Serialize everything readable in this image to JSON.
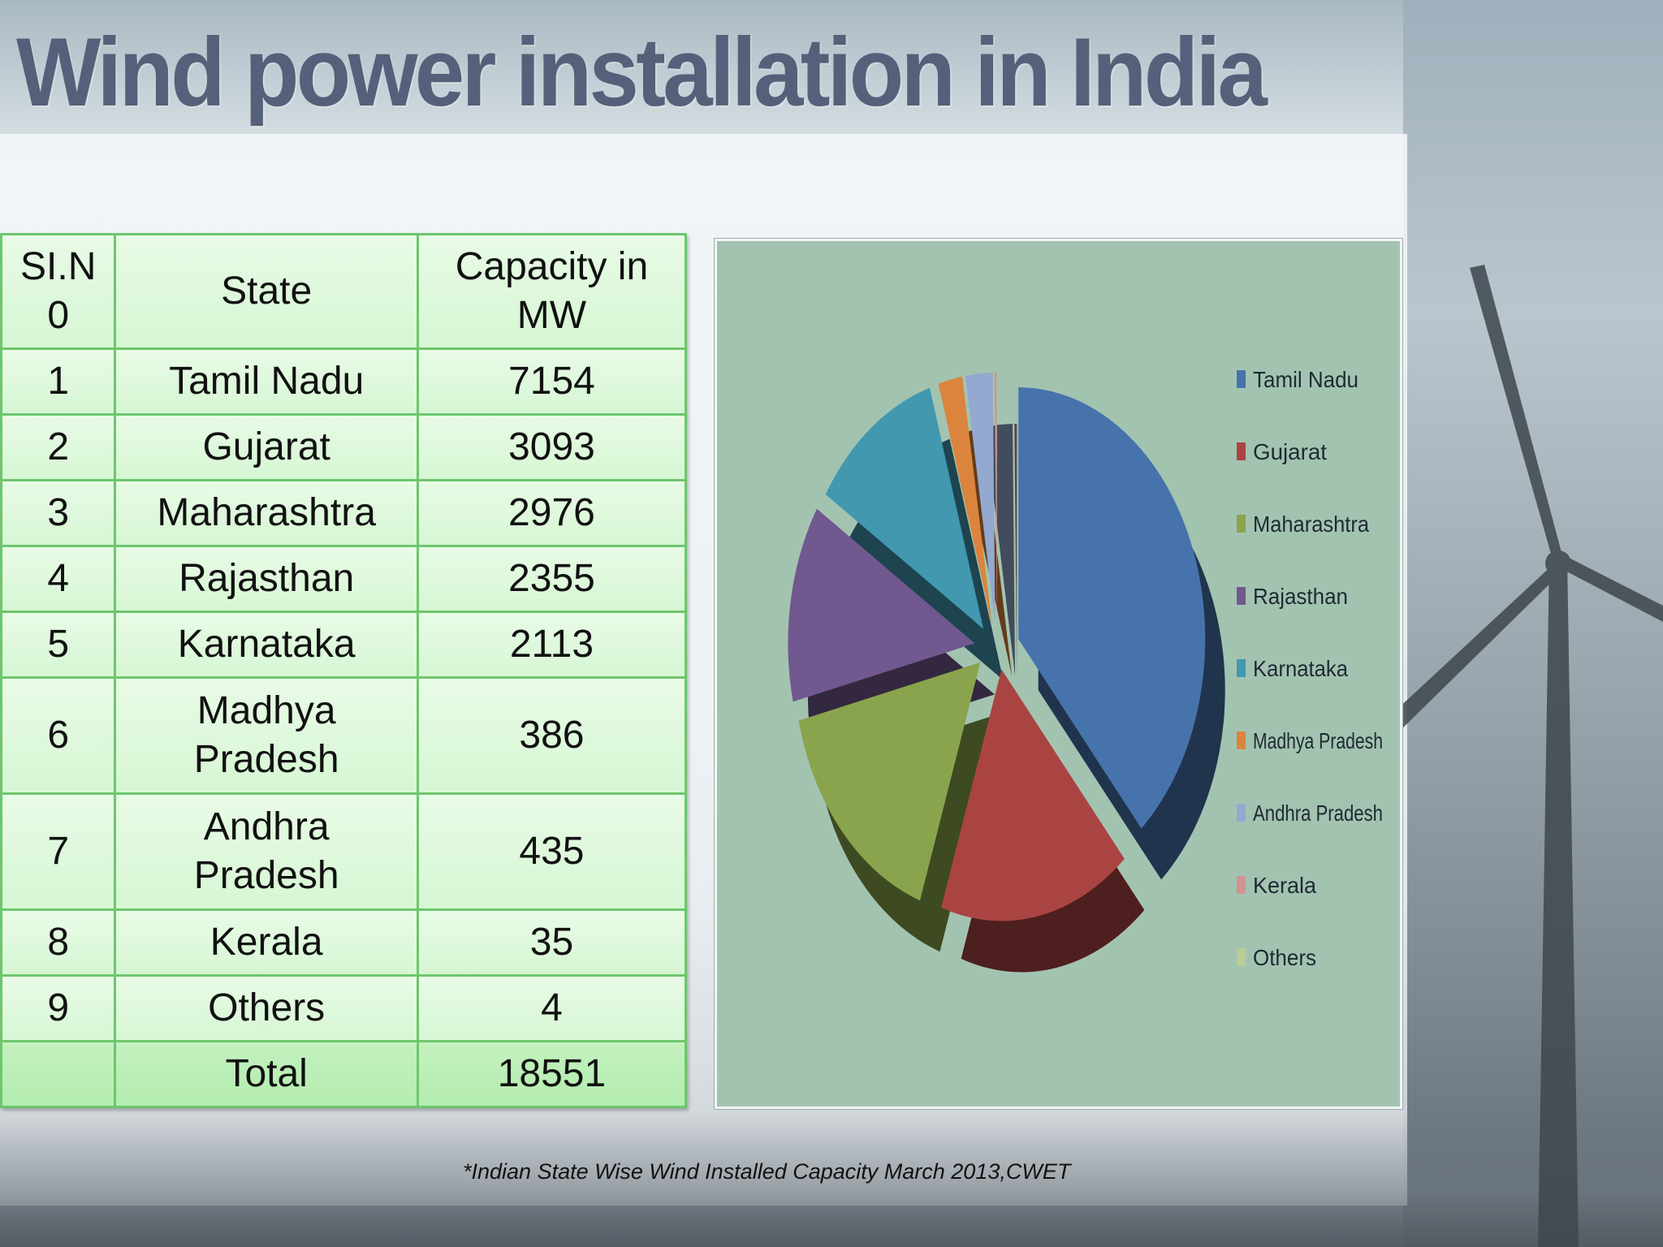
{
  "title": "Wind power installation in India",
  "table": {
    "headers": [
      "SI.N 0",
      "State",
      "Capacity in MW"
    ],
    "rows": [
      {
        "sno": "1",
        "state": "Tamil Nadu",
        "capacity": "7154"
      },
      {
        "sno": "2",
        "state": "Gujarat",
        "capacity": "3093"
      },
      {
        "sno": "3",
        "state": "Maharashtra",
        "capacity": "2976"
      },
      {
        "sno": "4",
        "state": "Rajasthan",
        "capacity": "2355"
      },
      {
        "sno": "5",
        "state": "Karnataka",
        "capacity": "2113"
      },
      {
        "sno": "6",
        "state": "Madhya Pradesh",
        "capacity": "386"
      },
      {
        "sno": "7",
        "state": "Andhra Pradesh",
        "capacity": "435"
      },
      {
        "sno": "8",
        "state": "Kerala",
        "capacity": "35"
      },
      {
        "sno": "9",
        "state": "Others",
        "capacity": "4"
      }
    ],
    "total_label": "Total",
    "total_value": "18551"
  },
  "chart_data": {
    "type": "pie",
    "title": "",
    "categories": [
      "Tamil Nadu",
      "Gujarat",
      "Maharashtra",
      "Rajasthan",
      "Karnataka",
      "Madhya Pradesh",
      "Andhra Pradesh",
      "Kerala",
      "Others"
    ],
    "values": [
      7154,
      3093,
      2976,
      2355,
      2113,
      386,
      435,
      35,
      4
    ],
    "colors": [
      "#4673ab",
      "#aa4443",
      "#89a44c",
      "#71588f",
      "#4198af",
      "#db843d",
      "#93a9cf",
      "#d19392",
      "#b9cd96"
    ],
    "exploded": true,
    "legend_position": "right"
  },
  "source_note": "*Indian State Wise Wind Installed Capacity March 2013,CWET"
}
